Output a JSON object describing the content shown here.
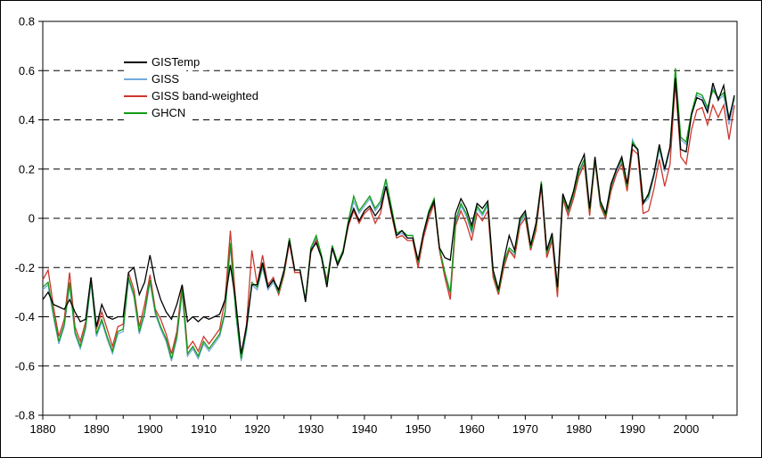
{
  "figure": {
    "background": "#ffffff",
    "border_color": "#000000"
  },
  "legend": {
    "position": "upper-left",
    "items": [
      "GISTemp",
      "GISS",
      "GISS band-weighted",
      "GHCN"
    ]
  },
  "chart_data": {
    "type": "line",
    "title": "",
    "xlabel": "",
    "ylabel": "",
    "xlim": [
      1880,
      2009.5
    ],
    "ylim": [
      -0.8,
      0.8
    ],
    "grid": "horizontal dashed lines every 0.2",
    "legend_position": "upper-left",
    "y_ticks": [
      0.8,
      0.6,
      0.4,
      0.2,
      0,
      -0.2,
      -0.4,
      -0.6,
      -0.8
    ],
    "y_tick_labels": [
      "0.8",
      "0.6",
      "0.4",
      "0.2",
      "0",
      "-0.2",
      "-0.4",
      "-0.6",
      "-0.8"
    ],
    "y_gridline_values": [
      0.6,
      0.4,
      0.2,
      0,
      -0.2,
      -0.4,
      -0.6
    ],
    "x_major_ticks": [
      1880,
      1890,
      1900,
      1910,
      1920,
      1930,
      1940,
      1950,
      1960,
      1970,
      1980,
      1990,
      2000
    ],
    "x_tick_labels": [
      "1880",
      "1890",
      "1900",
      "1910",
      "1920",
      "1930",
      "1940",
      "1950",
      "1960",
      "1970",
      "1980",
      "1990",
      "2000"
    ],
    "x_minor_ticks": [
      1885,
      1895,
      1905,
      1915,
      1925,
      1935,
      1945,
      1955,
      1965,
      1975,
      1985,
      1995,
      2005
    ],
    "x": [
      1880,
      1881,
      1882,
      1883,
      1884,
      1885,
      1886,
      1887,
      1888,
      1889,
      1890,
      1891,
      1892,
      1893,
      1894,
      1895,
      1896,
      1897,
      1898,
      1899,
      1900,
      1901,
      1902,
      1903,
      1904,
      1905,
      1906,
      1907,
      1908,
      1909,
      1910,
      1911,
      1912,
      1913,
      1914,
      1915,
      1916,
      1917,
      1918,
      1919,
      1920,
      1921,
      1922,
      1923,
      1924,
      1925,
      1926,
      1927,
      1928,
      1929,
      1930,
      1931,
      1932,
      1933,
      1934,
      1935,
      1936,
      1937,
      1938,
      1939,
      1940,
      1941,
      1942,
      1943,
      1944,
      1945,
      1946,
      1947,
      1948,
      1949,
      1950,
      1951,
      1952,
      1953,
      1954,
      1955,
      1956,
      1957,
      1958,
      1959,
      1960,
      1961,
      1962,
      1963,
      1964,
      1965,
      1966,
      1967,
      1968,
      1969,
      1970,
      1971,
      1972,
      1973,
      1974,
      1975,
      1976,
      1977,
      1978,
      1979,
      1980,
      1981,
      1982,
      1983,
      1984,
      1985,
      1986,
      1987,
      1988,
      1989,
      1990,
      1991,
      1992,
      1993,
      1994,
      1995,
      1996,
      1997,
      1998,
      1999,
      2000,
      2001,
      2002,
      2003,
      2004,
      2005,
      2006,
      2007,
      2008,
      2009
    ],
    "draw_order": [
      1,
      2,
      3,
      0
    ],
    "series": [
      {
        "name": "GISTemp",
        "color": "#000000",
        "values": [
          -0.33,
          -0.3,
          -0.35,
          -0.36,
          -0.37,
          -0.33,
          -0.38,
          -0.42,
          -0.41,
          -0.24,
          -0.44,
          -0.35,
          -0.4,
          -0.41,
          -0.4,
          -0.4,
          -0.22,
          -0.2,
          -0.31,
          -0.26,
          -0.15,
          -0.26,
          -0.33,
          -0.38,
          -0.41,
          -0.35,
          -0.27,
          -0.42,
          -0.4,
          -0.42,
          -0.4,
          -0.41,
          -0.4,
          -0.39,
          -0.33,
          -0.19,
          -0.34,
          -0.55,
          -0.44,
          -0.27,
          -0.27,
          -0.18,
          -0.28,
          -0.25,
          -0.29,
          -0.21,
          -0.09,
          -0.21,
          -0.21,
          -0.34,
          -0.13,
          -0.1,
          -0.16,
          -0.28,
          -0.12,
          -0.19,
          -0.14,
          -0.02,
          0.04,
          -0.01,
          0.03,
          0.05,
          0.01,
          0.04,
          0.13,
          0.03,
          -0.07,
          -0.05,
          -0.08,
          -0.08,
          -0.17,
          -0.06,
          0.02,
          0.07,
          -0.12,
          -0.16,
          -0.17,
          0.02,
          0.08,
          0.04,
          -0.03,
          0.06,
          0.04,
          0.07,
          -0.21,
          -0.29,
          -0.17,
          -0.07,
          -0.13,
          0.0,
          0.03,
          -0.11,
          -0.02,
          0.14,
          -0.13,
          -0.06,
          -0.28,
          0.1,
          0.04,
          0.11,
          0.21,
          0.26,
          0.04,
          0.25,
          0.07,
          0.02,
          0.14,
          0.2,
          0.25,
          0.14,
          0.3,
          0.28,
          0.06,
          0.1,
          0.18,
          0.3,
          0.2,
          0.29,
          0.57,
          0.28,
          0.27,
          0.42,
          0.49,
          0.48,
          0.43,
          0.55,
          0.48,
          0.54,
          0.4,
          0.5
        ]
      },
      {
        "name": "GISS",
        "color": "#74a9dc",
        "values": [
          -0.29,
          -0.27,
          -0.4,
          -0.51,
          -0.44,
          -0.27,
          -0.47,
          -0.53,
          -0.45,
          -0.26,
          -0.48,
          -0.42,
          -0.49,
          -0.55,
          -0.47,
          -0.46,
          -0.25,
          -0.32,
          -0.47,
          -0.39,
          -0.26,
          -0.39,
          -0.45,
          -0.5,
          -0.58,
          -0.49,
          -0.3,
          -0.56,
          -0.53,
          -0.57,
          -0.51,
          -0.54,
          -0.51,
          -0.48,
          -0.39,
          -0.11,
          -0.39,
          -0.58,
          -0.46,
          -0.27,
          -0.29,
          -0.2,
          -0.29,
          -0.26,
          -0.31,
          -0.23,
          -0.09,
          -0.22,
          -0.22,
          -0.34,
          -0.13,
          -0.08,
          -0.16,
          -0.27,
          -0.12,
          -0.19,
          -0.14,
          -0.02,
          0.07,
          0.02,
          0.05,
          0.08,
          0.03,
          0.06,
          0.15,
          0.04,
          -0.07,
          -0.06,
          -0.08,
          -0.08,
          -0.19,
          -0.07,
          0.02,
          0.07,
          -0.13,
          -0.23,
          -0.31,
          -0.02,
          0.05,
          0.01,
          -0.06,
          0.04,
          0.01,
          0.05,
          -0.23,
          -0.31,
          -0.19,
          -0.13,
          -0.15,
          -0.02,
          0.01,
          -0.13,
          -0.04,
          0.14,
          -0.15,
          -0.08,
          -0.3,
          0.08,
          0.02,
          0.09,
          0.18,
          0.23,
          0.02,
          0.23,
          0.05,
          0.0,
          0.12,
          0.19,
          0.23,
          0.12,
          0.32,
          0.27,
          0.06,
          0.08,
          0.17,
          0.28,
          0.19,
          0.28,
          0.58,
          0.32,
          0.3,
          0.42,
          0.5,
          0.49,
          0.44,
          0.53,
          0.48,
          0.5,
          0.38,
          0.49
        ]
      },
      {
        "name": "GISS band-weighted",
        "color": "#cc372c",
        "values": [
          -0.25,
          -0.21,
          -0.36,
          -0.48,
          -0.41,
          -0.22,
          -0.44,
          -0.5,
          -0.42,
          -0.24,
          -0.45,
          -0.38,
          -0.45,
          -0.52,
          -0.44,
          -0.43,
          -0.22,
          -0.29,
          -0.44,
          -0.35,
          -0.23,
          -0.37,
          -0.41,
          -0.47,
          -0.55,
          -0.46,
          -0.27,
          -0.53,
          -0.5,
          -0.54,
          -0.48,
          -0.51,
          -0.48,
          -0.45,
          -0.33,
          -0.05,
          -0.34,
          -0.56,
          -0.43,
          -0.13,
          -0.27,
          -0.15,
          -0.27,
          -0.24,
          -0.31,
          -0.23,
          -0.1,
          -0.22,
          -0.22,
          -0.33,
          -0.14,
          -0.09,
          -0.16,
          -0.25,
          -0.12,
          -0.19,
          -0.14,
          -0.03,
          0.03,
          -0.02,
          0.02,
          0.04,
          -0.02,
          0.02,
          0.13,
          0.02,
          -0.08,
          -0.07,
          -0.09,
          -0.09,
          -0.2,
          -0.08,
          0.0,
          0.06,
          -0.13,
          -0.24,
          -0.33,
          -0.03,
          0.03,
          -0.02,
          -0.09,
          0.02,
          -0.01,
          0.03,
          -0.24,
          -0.31,
          -0.2,
          -0.13,
          -0.16,
          -0.03,
          0.0,
          -0.13,
          -0.05,
          0.13,
          -0.16,
          -0.09,
          -0.32,
          0.08,
          0.01,
          0.08,
          0.17,
          0.22,
          0.01,
          0.23,
          0.05,
          0.0,
          0.11,
          0.18,
          0.22,
          0.11,
          0.28,
          0.26,
          0.02,
          0.03,
          0.12,
          0.24,
          0.13,
          0.22,
          0.55,
          0.25,
          0.22,
          0.36,
          0.44,
          0.45,
          0.38,
          0.46,
          0.41,
          0.46,
          0.32,
          0.46
        ]
      },
      {
        "name": "GHCN",
        "color": "#129c16",
        "values": [
          -0.28,
          -0.26,
          -0.39,
          -0.5,
          -0.43,
          -0.26,
          -0.46,
          -0.52,
          -0.44,
          -0.25,
          -0.47,
          -0.41,
          -0.48,
          -0.54,
          -0.46,
          -0.45,
          -0.24,
          -0.31,
          -0.46,
          -0.38,
          -0.25,
          -0.38,
          -0.44,
          -0.49,
          -0.57,
          -0.48,
          -0.29,
          -0.55,
          -0.52,
          -0.56,
          -0.5,
          -0.53,
          -0.5,
          -0.47,
          -0.38,
          -0.1,
          -0.38,
          -0.57,
          -0.45,
          -0.26,
          -0.28,
          -0.19,
          -0.28,
          -0.25,
          -0.3,
          -0.22,
          -0.08,
          -0.21,
          -0.21,
          -0.33,
          -0.12,
          -0.07,
          -0.15,
          -0.26,
          -0.11,
          -0.18,
          -0.13,
          -0.01,
          0.09,
          0.03,
          0.06,
          0.09,
          0.04,
          0.07,
          0.16,
          0.05,
          -0.06,
          -0.05,
          -0.07,
          -0.07,
          -0.18,
          -0.06,
          0.03,
          0.08,
          -0.12,
          -0.22,
          -0.3,
          -0.01,
          0.06,
          0.02,
          -0.05,
          0.05,
          0.02,
          0.06,
          -0.22,
          -0.3,
          -0.18,
          -0.12,
          -0.14,
          -0.01,
          0.02,
          -0.12,
          -0.03,
          0.15,
          -0.14,
          -0.07,
          -0.29,
          0.09,
          0.03,
          0.1,
          0.19,
          0.24,
          0.03,
          0.24,
          0.06,
          0.01,
          0.13,
          0.2,
          0.24,
          0.13,
          0.31,
          0.28,
          0.07,
          0.09,
          0.18,
          0.29,
          0.2,
          0.29,
          0.61,
          0.33,
          0.31,
          0.43,
          0.51,
          0.5,
          0.45,
          0.52,
          0.49,
          0.51,
          0.41,
          0.49
        ]
      }
    ]
  }
}
